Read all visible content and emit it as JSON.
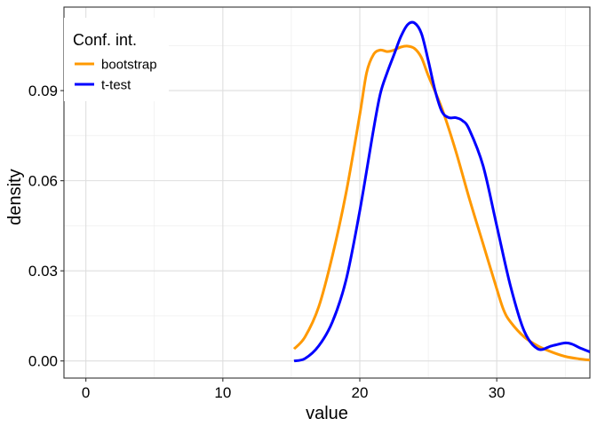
{
  "chart_data": {
    "type": "line",
    "xlabel": "value",
    "ylabel": "density",
    "xlim": [
      -1.6,
      36.8
    ],
    "ylim": [
      -0.0057,
      0.1178
    ],
    "x_ticks": [
      0,
      10,
      20,
      30
    ],
    "y_ticks": [
      0.0,
      0.03,
      0.06,
      0.09
    ],
    "x_tick_labels": [
      "0",
      "10",
      "20",
      "30"
    ],
    "y_tick_labels": [
      "0.00",
      "0.03",
      "0.06",
      "0.09"
    ],
    "x_minor_ticks": [
      5,
      15,
      25,
      35
    ],
    "y_minor_ticks": [
      0.015,
      0.045,
      0.075,
      0.105
    ],
    "grid": true,
    "legend": {
      "title": "Conf. int.",
      "position": "top-left",
      "entries": [
        "bootstrap",
        "t-test"
      ]
    },
    "series": [
      {
        "name": "bootstrap",
        "color": "#FF9900",
        "x": [
          15.2,
          16.0,
          17.0,
          18.0,
          19.0,
          20.0,
          20.5,
          21.0,
          21.5,
          22.0,
          22.5,
          23.0,
          23.5,
          24.0,
          24.5,
          25.0,
          26.0,
          27.0,
          28.0,
          29.0,
          30.0,
          30.5,
          31.0,
          32.0,
          33.0,
          34.0,
          35.0,
          36.0,
          36.8
        ],
        "y": [
          0.004,
          0.008,
          0.018,
          0.035,
          0.056,
          0.082,
          0.096,
          0.102,
          0.1035,
          0.103,
          0.1035,
          0.1045,
          0.1048,
          0.104,
          0.101,
          0.095,
          0.084,
          0.07,
          0.054,
          0.039,
          0.024,
          0.017,
          0.013,
          0.008,
          0.005,
          0.003,
          0.0015,
          0.0007,
          0.0003
        ]
      },
      {
        "name": "t-test",
        "color": "#0000FF",
        "x": [
          15.2,
          16.0,
          17.0,
          18.0,
          19.0,
          20.0,
          21.0,
          21.5,
          22.0,
          22.5,
          23.0,
          23.5,
          24.0,
          24.5,
          25.0,
          25.5,
          26.0,
          26.5,
          27.0,
          27.5,
          28.0,
          29.0,
          30.0,
          31.0,
          32.0,
          33.0,
          34.0,
          35.0,
          35.5,
          36.0,
          36.8
        ],
        "y": [
          0.0,
          0.0008,
          0.005,
          0.013,
          0.027,
          0.05,
          0.077,
          0.089,
          0.096,
          0.102,
          0.108,
          0.112,
          0.1125,
          0.109,
          0.1,
          0.09,
          0.083,
          0.081,
          0.081,
          0.08,
          0.077,
          0.065,
          0.045,
          0.025,
          0.01,
          0.004,
          0.005,
          0.006,
          0.0056,
          0.0045,
          0.003
        ]
      }
    ]
  }
}
